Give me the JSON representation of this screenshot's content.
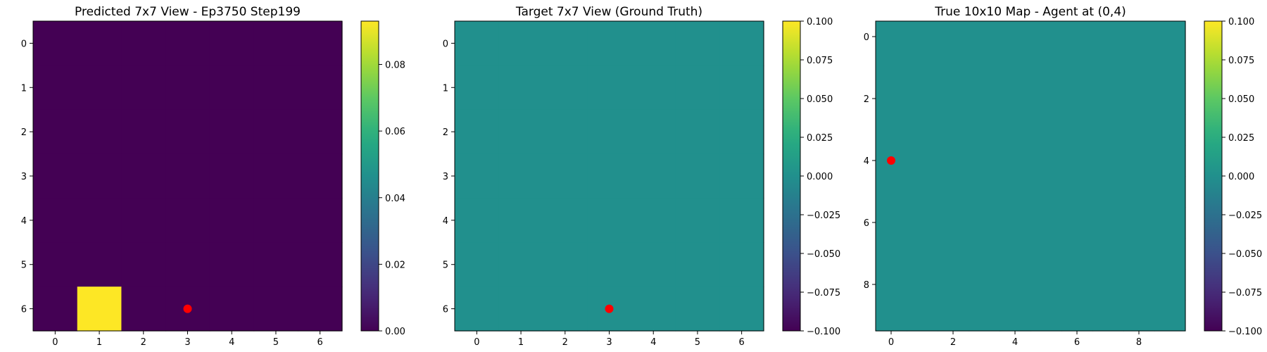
{
  "chart_data": [
    {
      "type": "heatmap",
      "title": "Predicted 7x7 View - Ep3750 Step199",
      "rows": 7,
      "cols": 7,
      "values": [
        [
          0,
          0,
          0,
          0,
          0,
          0,
          0
        ],
        [
          0,
          0,
          0,
          0,
          0,
          0,
          0
        ],
        [
          0,
          0,
          0,
          0,
          0,
          0,
          0
        ],
        [
          0,
          0,
          0,
          0,
          0,
          0,
          0
        ],
        [
          0,
          0,
          0,
          0,
          0,
          0,
          0
        ],
        [
          0,
          0,
          0,
          0,
          0,
          0,
          0
        ],
        [
          0,
          0.093,
          0,
          0,
          0,
          0,
          0
        ]
      ],
      "vmin": 0,
      "vmax": 0.093,
      "xticks": [
        0,
        1,
        2,
        3,
        4,
        5,
        6
      ],
      "yticks": [
        0,
        1,
        2,
        3,
        4,
        5,
        6
      ],
      "colorbar_ticks": [
        0.0,
        0.02,
        0.04,
        0.06,
        0.08
      ],
      "colorbar_labels": [
        "0.00",
        "0.02",
        "0.04",
        "0.06",
        "0.08"
      ],
      "marker": {
        "x": 3,
        "y": 6,
        "color": "#ff0000"
      }
    },
    {
      "type": "heatmap",
      "title": "Target 7x7 View (Ground Truth)",
      "rows": 7,
      "cols": 7,
      "fill_value": 0,
      "vmin": -0.1,
      "vmax": 0.1,
      "xticks": [
        0,
        1,
        2,
        3,
        4,
        5,
        6
      ],
      "yticks": [
        0,
        1,
        2,
        3,
        4,
        5,
        6
      ],
      "colorbar_ticks": [
        0.1,
        0.075,
        0.05,
        0.025,
        0.0,
        -0.025,
        -0.05,
        -0.075,
        -0.1
      ],
      "colorbar_labels": [
        "0.100",
        "0.075",
        "0.050",
        "0.025",
        "0.000",
        "−0.025",
        "−0.050",
        "−0.075",
        "−0.100"
      ],
      "marker": {
        "x": 3,
        "y": 6,
        "color": "#ff0000"
      }
    },
    {
      "type": "heatmap",
      "title": "True 10x10 Map - Agent at (0,4)",
      "rows": 10,
      "cols": 10,
      "fill_value": 0,
      "vmin": -0.1,
      "vmax": 0.1,
      "xticks": [
        0,
        2,
        4,
        6,
        8
      ],
      "yticks": [
        0,
        2,
        4,
        6,
        8
      ],
      "colorbar_ticks": [
        0.1,
        0.075,
        0.05,
        0.025,
        0.0,
        -0.025,
        -0.05,
        -0.075,
        -0.1
      ],
      "colorbar_labels": [
        "0.100",
        "0.075",
        "0.050",
        "0.025",
        "0.000",
        "−0.025",
        "−0.050",
        "−0.075",
        "−0.100"
      ],
      "marker": {
        "x": 0,
        "y": 4,
        "color": "#ff0000"
      }
    }
  ]
}
